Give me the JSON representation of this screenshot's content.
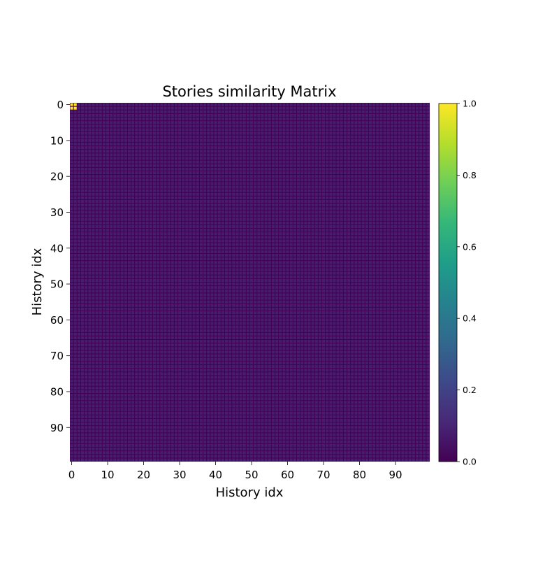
{
  "chart_data": {
    "type": "heatmap",
    "title": "Stories similarity Matrix",
    "xlabel": "History idx",
    "ylabel": "History idx",
    "size": 100,
    "xticks": [
      0,
      10,
      20,
      30,
      40,
      50,
      60,
      70,
      80,
      90
    ],
    "yticks": [
      0,
      10,
      20,
      30,
      40,
      50,
      60,
      70,
      80,
      90
    ],
    "value_range": [
      0.0,
      1.0
    ],
    "cell_gap_value": 0.0,
    "background_value": 0.08,
    "high_cells": [
      {
        "x": 0,
        "y": 0,
        "value": 1.0
      },
      {
        "x": 1,
        "y": 0,
        "value": 1.0
      },
      {
        "x": 0,
        "y": 1,
        "value": 1.0
      },
      {
        "x": 1,
        "y": 1,
        "value": 1.0
      }
    ],
    "colorbar": {
      "colormap": "viridis",
      "ticks": [
        0.0,
        0.2,
        0.4,
        0.6,
        0.8,
        1.0
      ],
      "tick_labels": [
        "0.0",
        "0.2",
        "0.4",
        "0.6",
        "0.8",
        "1.0"
      ],
      "stops": [
        "#440154",
        "#482878",
        "#3e4989",
        "#31688e",
        "#26828e",
        "#1f9e89",
        "#35b779",
        "#6ece58",
        "#b5de2b",
        "#fde725"
      ]
    }
  }
}
